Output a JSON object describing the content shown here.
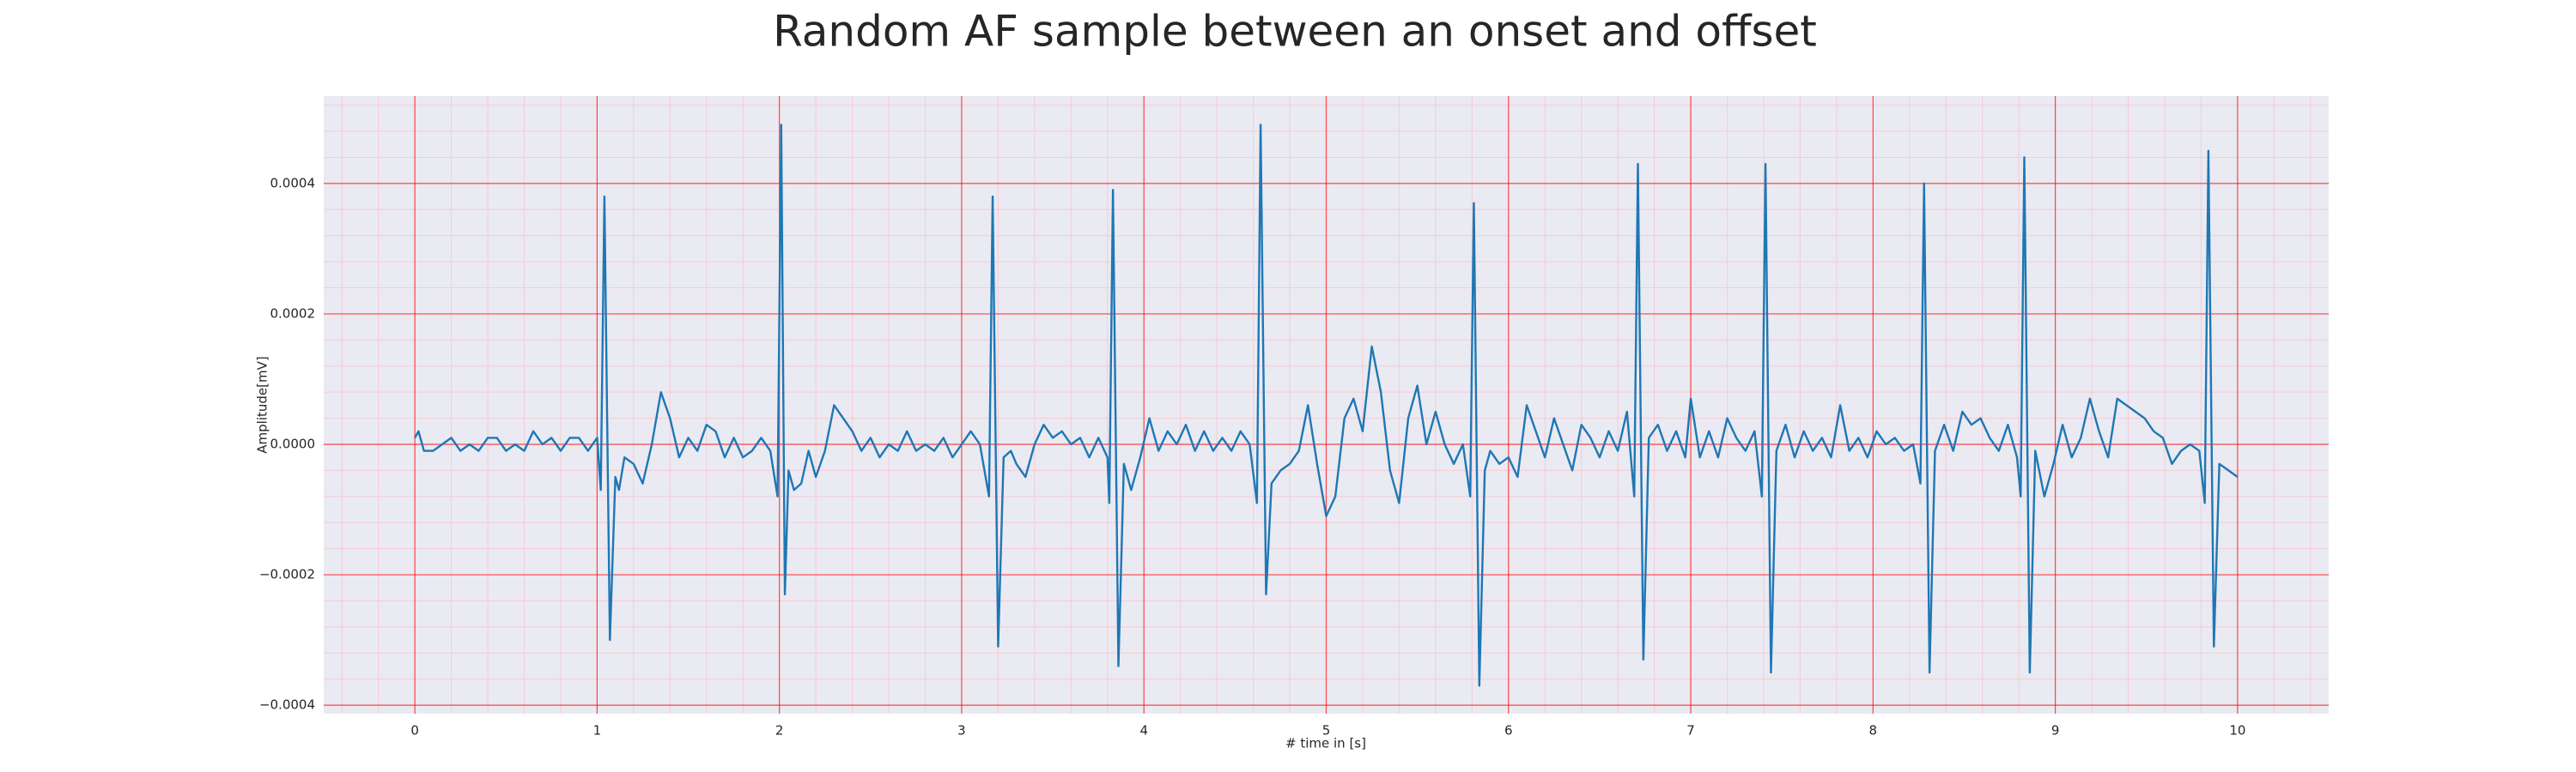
{
  "chart_data": {
    "type": "line",
    "title": "Random AF sample between an onset and offset",
    "xlabel": "# time in [s]",
    "ylabel": "Amplitude[mV]",
    "color": "#1f77b4",
    "grid": true,
    "minor_grid": true,
    "xlim": [
      -0.5,
      10.5
    ],
    "ylim": [
      -0.000413,
      0.000534
    ],
    "xticks": [
      0,
      1,
      2,
      3,
      4,
      5,
      6,
      7,
      8,
      9,
      10
    ],
    "yticks": [
      {
        "value": -0.0004,
        "label": "−0.0004"
      },
      {
        "value": -0.0002,
        "label": "−0.0002"
      },
      {
        "value": 0,
        "label": "0.0000"
      },
      0.0002,
      0.0004
    ],
    "x": [
      0,
      0.02,
      0.05,
      0.1,
      0.15,
      0.2,
      0.25,
      0.3,
      0.35,
      0.4,
      0.45,
      0.5,
      0.55,
      0.6,
      0.65,
      0.7,
      0.75,
      0.8,
      0.85,
      0.9,
      0.95,
      1.0,
      1.02,
      1.04,
      1.07,
      1.1,
      1.12,
      1.15,
      1.2,
      1.25,
      1.3,
      1.35,
      1.4,
      1.45,
      1.5,
      1.55,
      1.6,
      1.65,
      1.7,
      1.75,
      1.8,
      1.85,
      1.9,
      1.95,
      1.99,
      2.01,
      2.03,
      2.05,
      2.08,
      2.12,
      2.16,
      2.2,
      2.25,
      2.3,
      2.35,
      2.4,
      2.45,
      2.5,
      2.55,
      2.6,
      2.65,
      2.7,
      2.75,
      2.8,
      2.85,
      2.9,
      2.95,
      3.0,
      3.05,
      3.1,
      3.15,
      3.17,
      3.2,
      3.23,
      3.27,
      3.3,
      3.35,
      3.4,
      3.45,
      3.5,
      3.55,
      3.6,
      3.65,
      3.7,
      3.75,
      3.8,
      3.81,
      3.83,
      3.86,
      3.89,
      3.93,
      3.98,
      4.03,
      4.08,
      4.13,
      4.18,
      4.23,
      4.28,
      4.33,
      4.38,
      4.43,
      4.48,
      4.53,
      4.58,
      4.62,
      4.64,
      4.67,
      4.7,
      4.75,
      4.8,
      4.85,
      4.9,
      4.95,
      5.0,
      5.05,
      5.1,
      5.15,
      5.2,
      5.25,
      5.3,
      5.35,
      5.4,
      5.45,
      5.5,
      5.55,
      5.6,
      5.65,
      5.7,
      5.75,
      5.79,
      5.81,
      5.84,
      5.87,
      5.9,
      5.95,
      6.0,
      6.05,
      6.1,
      6.15,
      6.2,
      6.25,
      6.3,
      6.35,
      6.4,
      6.45,
      6.5,
      6.55,
      6.6,
      6.65,
      6.69,
      6.71,
      6.74,
      6.77,
      6.82,
      6.87,
      6.92,
      6.97,
      7.0,
      7.05,
      7.1,
      7.15,
      7.2,
      7.25,
      7.3,
      7.35,
      7.39,
      7.41,
      7.44,
      7.47,
      7.52,
      7.57,
      7.62,
      7.67,
      7.72,
      7.77,
      7.82,
      7.87,
      7.92,
      7.97,
      8.02,
      8.07,
      8.12,
      8.17,
      8.22,
      8.26,
      8.28,
      8.31,
      8.34,
      8.39,
      8.44,
      8.49,
      8.54,
      8.59,
      8.64,
      8.69,
      8.74,
      8.79,
      8.81,
      8.83,
      8.86,
      8.89,
      8.94,
      8.99,
      9.04,
      9.09,
      9.14,
      9.19,
      9.24,
      9.29,
      9.34,
      9.39,
      9.44,
      9.49,
      9.54,
      9.59,
      9.64,
      9.69,
      9.74,
      9.79,
      9.82,
      9.84,
      9.87,
      9.9,
      9.95,
      10.0
    ],
    "values": [
      1e-05,
      2e-05,
      -1e-05,
      -1e-05,
      0.0,
      1e-05,
      -1e-05,
      0.0,
      -1e-05,
      1e-05,
      1e-05,
      -1e-05,
      0.0,
      -1e-05,
      2e-05,
      0.0,
      1e-05,
      -1e-05,
      1e-05,
      1e-05,
      -1e-05,
      1e-05,
      -7e-05,
      0.00038,
      -0.0003,
      -5e-05,
      -7e-05,
      -2e-05,
      -3e-05,
      -6e-05,
      0.0,
      8e-05,
      4e-05,
      -2e-05,
      1e-05,
      -1e-05,
      3e-05,
      2e-05,
      -2e-05,
      1e-05,
      -2e-05,
      -1e-05,
      1e-05,
      -1e-05,
      -8e-05,
      0.00049,
      -0.00023,
      -4e-05,
      -7e-05,
      -6e-05,
      -1e-05,
      -5e-05,
      -1e-05,
      6e-05,
      4e-05,
      2e-05,
      -1e-05,
      1e-05,
      -2e-05,
      0.0,
      -1e-05,
      2e-05,
      -1e-05,
      0.0,
      -1e-05,
      1e-05,
      -2e-05,
      0.0,
      2e-05,
      0.0,
      -8e-05,
      0.00038,
      -0.00031,
      -2e-05,
      -1e-05,
      -3e-05,
      -5e-05,
      0.0,
      3e-05,
      1e-05,
      2e-05,
      0.0,
      1e-05,
      -2e-05,
      1e-05,
      -2e-05,
      -9e-05,
      0.00039,
      -0.00034,
      -3e-05,
      -7e-05,
      -2e-05,
      4e-05,
      -1e-05,
      2e-05,
      0.0,
      3e-05,
      -1e-05,
      2e-05,
      -1e-05,
      1e-05,
      -1e-05,
      2e-05,
      0.0,
      -9e-05,
      0.00049,
      -0.00023,
      -6e-05,
      -4e-05,
      -3e-05,
      -1e-05,
      6e-05,
      -3e-05,
      -0.00011,
      -8e-05,
      4e-05,
      7e-05,
      2e-05,
      0.00015,
      8e-05,
      -4e-05,
      -9e-05,
      4e-05,
      9e-05,
      0.0,
      5e-05,
      0.0,
      -3e-05,
      0.0,
      -8e-05,
      0.00037,
      -0.00037,
      -4e-05,
      -1e-05,
      -3e-05,
      -2e-05,
      -5e-05,
      6e-05,
      2e-05,
      -2e-05,
      4e-05,
      0.0,
      -4e-05,
      3e-05,
      1e-05,
      -2e-05,
      2e-05,
      -1e-05,
      5e-05,
      -8e-05,
      0.00043,
      -0.00033,
      1e-05,
      3e-05,
      -1e-05,
      2e-05,
      -2e-05,
      7e-05,
      -2e-05,
      2e-05,
      -2e-05,
      4e-05,
      1e-05,
      -1e-05,
      2e-05,
      -8e-05,
      0.00043,
      -0.00035,
      -1e-05,
      3e-05,
      -2e-05,
      2e-05,
      -1e-05,
      1e-05,
      -2e-05,
      6e-05,
      -1e-05,
      1e-05,
      -2e-05,
      2e-05,
      0.0,
      1e-05,
      -1e-05,
      0.0,
      -6e-05,
      0.0004,
      -0.00035,
      -1e-05,
      3e-05,
      -1e-05,
      5e-05,
      3e-05,
      4e-05,
      1e-05,
      -1e-05,
      3e-05,
      -2e-05,
      -8e-05,
      0.00044,
      -0.00035,
      -1e-05,
      -8e-05,
      -3e-05,
      3e-05,
      -2e-05,
      1e-05,
      7e-05,
      2e-05,
      -2e-05,
      7e-05,
      6e-05,
      5e-05,
      4e-05,
      2e-05,
      1e-05,
      -3e-05,
      -1e-05,
      0.0,
      -1e-05,
      -9e-05,
      0.00045,
      -0.00031,
      -3e-05,
      -4e-05,
      -5e-05
    ]
  }
}
